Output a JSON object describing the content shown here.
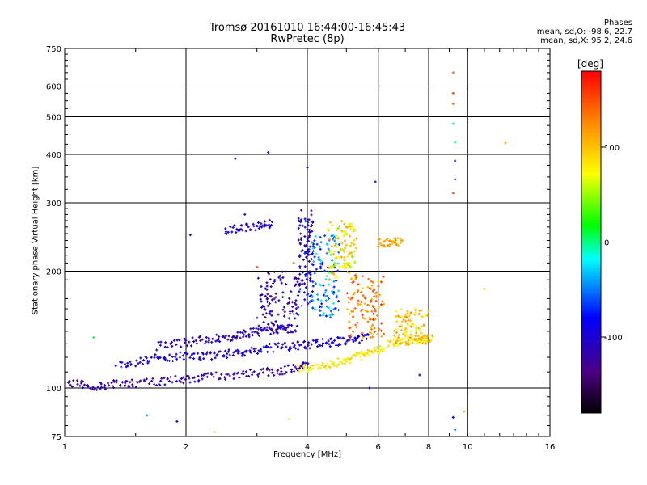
{
  "title": {
    "line1": "Tromsø 20161010 16:44:00-16:45:43",
    "line2": "RwPretec (8p)"
  },
  "stats": {
    "heading": "Phases",
    "line_o": "mean, sd,O:  -98.6, 22.7",
    "line_x": "mean, sd,X:   95.2, 24.6"
  },
  "chart_data": {
    "type": "scatter",
    "xlabel": "Frequency [MHz]",
    "ylabel": "Stationary phase Virtual Height [km]",
    "xscale": "log",
    "yscale": "log",
    "xlim": [
      1,
      16
    ],
    "ylim": [
      75,
      750
    ],
    "xticks": [
      1,
      2,
      4,
      6,
      8,
      10,
      16
    ],
    "xtick_labels": [
      "1",
      "2",
      "4",
      "6",
      "8",
      "10",
      "16"
    ],
    "yticks": [
      75,
      100,
      200,
      300,
      400,
      500,
      600,
      750
    ],
    "ytick_labels": [
      "75",
      "100",
      "200",
      "300",
      "400",
      "500",
      "600",
      "750"
    ],
    "grid": true,
    "colorbar": {
      "label": "[deg]",
      "range": [
        -180,
        180
      ],
      "ticks": [
        100,
        0,
        -100
      ],
      "tick_labels": [
        "100",
        "0",
        "-100"
      ]
    },
    "traces": [
      {
        "x": [
          1.0,
          1.1,
          1.2,
          1.3,
          1.4,
          1.5,
          1.7,
          1.9,
          2.1,
          2.3,
          2.6,
          2.9,
          3.2,
          3.5,
          3.8,
          4.0
        ],
        "y": [
          103,
          102,
          101,
          102,
          103,
          103,
          104,
          105,
          106,
          107,
          108,
          109,
          110,
          111,
          113,
          115
        ],
        "phase": -115
      },
      {
        "x": [
          1.35,
          1.5,
          1.65,
          1.8,
          2.0,
          2.2,
          2.4,
          2.6,
          2.8,
          3.0,
          3.3,
          3.6,
          3.9,
          4.2,
          4.5,
          4.8,
          5.1,
          5.4,
          5.7
        ],
        "y": [
          114,
          117,
          119,
          120,
          121,
          121,
          122,
          123,
          124,
          126,
          127,
          128,
          129,
          130,
          131,
          132,
          133,
          134,
          135
        ],
        "phase": -100
      },
      {
        "x": [
          1.7,
          1.9,
          2.1,
          2.3,
          2.5,
          2.7,
          2.9,
          3.1,
          3.3,
          3.5,
          3.7
        ],
        "y": [
          128,
          130,
          132,
          134,
          135,
          137,
          139,
          140,
          141,
          142,
          142
        ],
        "phase": -110
      },
      {
        "x": [
          3.8,
          4.1,
          4.4,
          4.7,
          5.0,
          5.3,
          5.6,
          5.9,
          6.2
        ],
        "y": [
          112,
          113,
          114,
          116,
          118,
          120,
          122,
          124,
          126
        ],
        "phase": 80
      },
      {
        "x": [
          6.3,
          6.8,
          7.3,
          7.8,
          8.2
        ],
        "y": [
          130,
          131,
          133,
          134,
          135
        ],
        "phase": 90
      },
      {
        "x": [
          2.5,
          2.7,
          2.9,
          3.1,
          3.3
        ],
        "y": [
          255,
          258,
          261,
          263,
          266
        ],
        "phase": -100
      },
      {
        "x": [
          6.0,
          6.3,
          6.6,
          6.9
        ],
        "y": [
          236,
          237,
          238,
          239
        ],
        "phase": 110
      }
    ],
    "clusters": [
      {
        "x_range": [
          3.0,
          3.8
        ],
        "y_range": [
          140,
          200
        ],
        "phase": -110
      },
      {
        "x_range": [
          3.8,
          4.15
        ],
        "y_range": [
          160,
          290
        ],
        "phase": -105
      },
      {
        "x_range": [
          4.1,
          4.8
        ],
        "y_range": [
          150,
          250
        ],
        "phase": -50
      },
      {
        "x_range": [
          4.5,
          5.3
        ],
        "y_range": [
          190,
          270
        ],
        "phase": 80
      },
      {
        "x_range": [
          5.0,
          6.2
        ],
        "y_range": [
          135,
          195
        ],
        "phase": 130
      },
      {
        "x_range": [
          6.5,
          8.0
        ],
        "y_range": [
          130,
          160
        ],
        "phase": 95
      }
    ],
    "points": [
      {
        "x": 2.65,
        "y": 390,
        "phase": -100
      },
      {
        "x": 3.2,
        "y": 405,
        "phase": -110
      },
      {
        "x": 4.0,
        "y": 370,
        "phase": -80
      },
      {
        "x": 5.9,
        "y": 340,
        "phase": -90
      },
      {
        "x": 9.2,
        "y": 650,
        "phase": 140
      },
      {
        "x": 9.2,
        "y": 575,
        "phase": 150
      },
      {
        "x": 9.2,
        "y": 540,
        "phase": 130
      },
      {
        "x": 9.2,
        "y": 480,
        "phase": -20
      },
      {
        "x": 9.3,
        "y": 430,
        "phase": 0
      },
      {
        "x": 9.3,
        "y": 385,
        "phase": -90
      },
      {
        "x": 9.3,
        "y": 345,
        "phase": -80
      },
      {
        "x": 9.2,
        "y": 318,
        "phase": 150
      },
      {
        "x": 12.4,
        "y": 428,
        "phase": 120
      },
      {
        "x": 11.0,
        "y": 180,
        "phase": 100
      },
      {
        "x": 1.18,
        "y": 135,
        "phase": 10
      },
      {
        "x": 1.6,
        "y": 85,
        "phase": -40
      },
      {
        "x": 1.9,
        "y": 82,
        "phase": -120
      },
      {
        "x": 2.35,
        "y": 77,
        "phase": 100
      },
      {
        "x": 3.6,
        "y": 83,
        "phase": 80
      },
      {
        "x": 9.2,
        "y": 84,
        "phase": -80
      },
      {
        "x": 9.8,
        "y": 87,
        "phase": 110
      },
      {
        "x": 9.3,
        "y": 78,
        "phase": -60
      },
      {
        "x": 2.05,
        "y": 248,
        "phase": -120
      },
      {
        "x": 2.8,
        "y": 280,
        "phase": -120
      },
      {
        "x": 3.0,
        "y": 205,
        "phase": 150
      },
      {
        "x": 3.7,
        "y": 210,
        "phase": 130
      },
      {
        "x": 5.7,
        "y": 100,
        "phase": -90
      },
      {
        "x": 7.6,
        "y": 108,
        "phase": -130
      }
    ]
  }
}
